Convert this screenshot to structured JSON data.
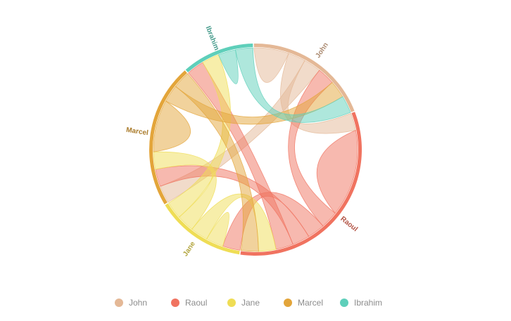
{
  "chart_data": {
    "type": "chord",
    "nodes": [
      {
        "name": "John",
        "color": "#e4b896"
      },
      {
        "name": "Raoul",
        "color": "#f07360"
      },
      {
        "name": "Jane",
        "color": "#efdd55"
      },
      {
        "name": "Marcel",
        "color": "#e3a53a"
      },
      {
        "name": "Ibrahim",
        "color": "#5ecfba"
      }
    ],
    "links": [
      {
        "source": "John",
        "target": "John",
        "value": 2
      },
      {
        "source": "John",
        "target": "Raoul",
        "value": 1
      },
      {
        "source": "John",
        "target": "Marcel",
        "value": 1
      },
      {
        "source": "Raoul",
        "target": "Raoul",
        "value": 5
      },
      {
        "source": "Raoul",
        "target": "John",
        "value": 1
      },
      {
        "source": "Raoul",
        "target": "Jane",
        "value": 1
      },
      {
        "source": "Raoul",
        "target": "Marcel",
        "value": 1
      },
      {
        "source": "Raoul",
        "target": "Ibrahim",
        "value": 1
      },
      {
        "source": "Jane",
        "target": "Jane",
        "value": 1
      },
      {
        "source": "Jane",
        "target": "Raoul",
        "value": 1
      },
      {
        "source": "Jane",
        "target": "Marcel",
        "value": 1
      },
      {
        "source": "Jane",
        "target": "Ibrahim",
        "value": 1
      },
      {
        "source": "Marcel",
        "target": "Marcel",
        "value": 3
      },
      {
        "source": "Marcel",
        "target": "John",
        "value": 1
      },
      {
        "source": "Marcel",
        "target": "Raoul",
        "value": 1
      },
      {
        "source": "Ibrahim",
        "target": "Ibrahim",
        "value": 1
      },
      {
        "source": "Ibrahim",
        "target": "John",
        "value": 1
      }
    ],
    "legend_position": "bottom"
  }
}
